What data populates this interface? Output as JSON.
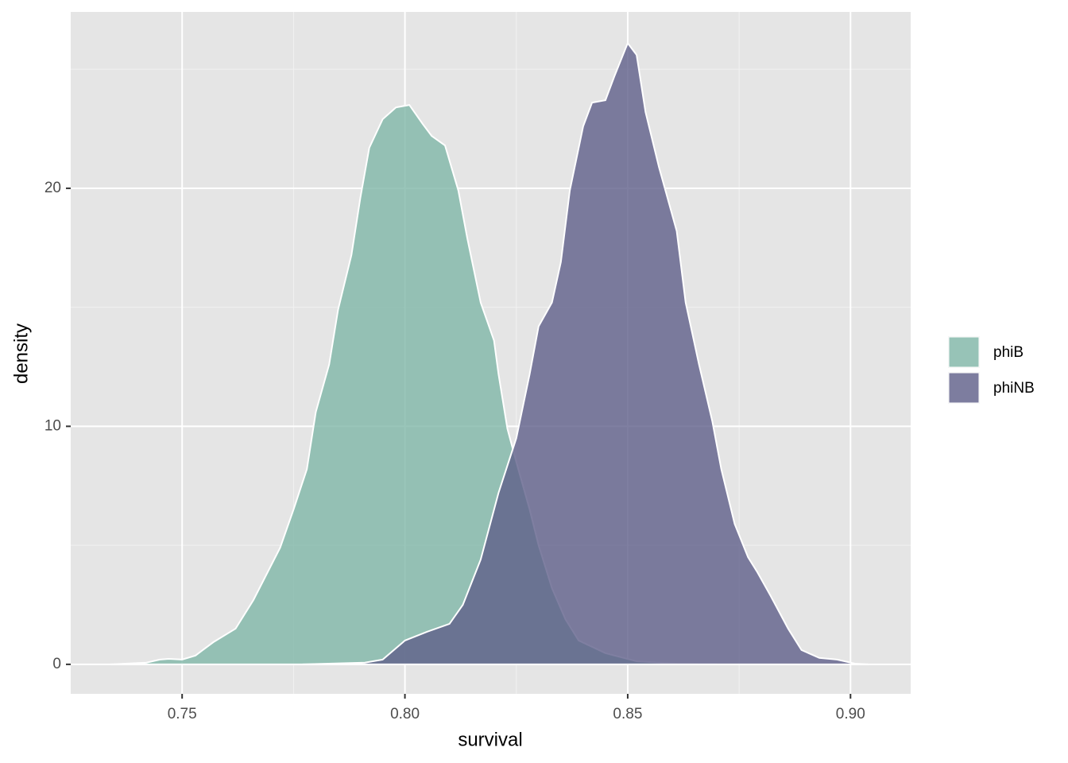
{
  "chart_data": {
    "type": "density",
    "x_label": "survival",
    "y_label": "density",
    "xlim": [
      0.725,
      0.9135
    ],
    "ylim": [
      -1.24,
      27.41
    ],
    "xticks": [
      0.75,
      {
        "value": 0.8,
        "label": "0.80"
      },
      0.85,
      {
        "value": 0.9,
        "label": "0.90"
      }
    ],
    "yticks": [
      0,
      10,
      20
    ],
    "x_minor_grid": [
      0.775,
      0.825,
      0.875
    ],
    "y_minor_grid": [
      5,
      15,
      25
    ],
    "grid": true,
    "legend": "right",
    "alpha": 0.8,
    "series": [
      {
        "name": "phiB",
        "color": "#80b6a7",
        "x": [
          0.734,
          0.742,
          0.745,
          0.747,
          0.75,
          0.753,
          0.757,
          0.762,
          0.766,
          0.772,
          0.775,
          0.778,
          0.78,
          0.783,
          0.785,
          0.788,
          0.79,
          0.792,
          0.795,
          0.798,
          0.801,
          0.804,
          0.806,
          0.809,
          0.812,
          0.814,
          0.817,
          0.82,
          0.821,
          0.823,
          0.825,
          0.828,
          0.83,
          0.833,
          0.836,
          0.839,
          0.845,
          0.852,
          0.861,
          0.87
        ],
        "values": [
          0,
          0.07,
          0.2,
          0.23,
          0.2,
          0.37,
          0.93,
          1.5,
          2.7,
          4.9,
          6.5,
          8.2,
          10.6,
          12.6,
          14.9,
          17.2,
          19.6,
          21.7,
          22.9,
          23.4,
          23.5,
          22.7,
          22.2,
          21.8,
          19.9,
          17.9,
          15.2,
          13.6,
          12.2,
          9.9,
          8.5,
          6.5,
          5.0,
          3.2,
          1.9,
          1.0,
          0.47,
          0.13,
          0.03,
          0
        ]
      },
      {
        "name": "phiNB",
        "color": "#5f5f8a",
        "x": [
          0.777,
          0.791,
          0.795,
          0.8,
          0.805,
          0.81,
          0.813,
          0.817,
          0.821,
          0.825,
          0.828,
          0.83,
          0.833,
          0.835,
          0.837,
          0.84,
          0.842,
          0.845,
          0.847,
          0.85,
          0.852,
          0.854,
          0.857,
          0.861,
          0.863,
          0.866,
          0.869,
          0.871,
          0.874,
          0.877,
          0.879,
          0.882,
          0.886,
          0.889,
          0.893,
          0.897,
          0.901,
          0.904
        ],
        "values": [
          0,
          0.07,
          0.2,
          1.0,
          1.37,
          1.7,
          2.5,
          4.4,
          7.2,
          9.5,
          12.2,
          14.2,
          15.2,
          16.9,
          19.9,
          22.6,
          23.6,
          23.7,
          24.7,
          26.1,
          25.6,
          23.2,
          20.9,
          18.2,
          15.2,
          12.6,
          10.2,
          8.2,
          5.9,
          4.5,
          3.9,
          2.9,
          1.5,
          0.6,
          0.27,
          0.2,
          0.03,
          0
        ]
      }
    ]
  }
}
